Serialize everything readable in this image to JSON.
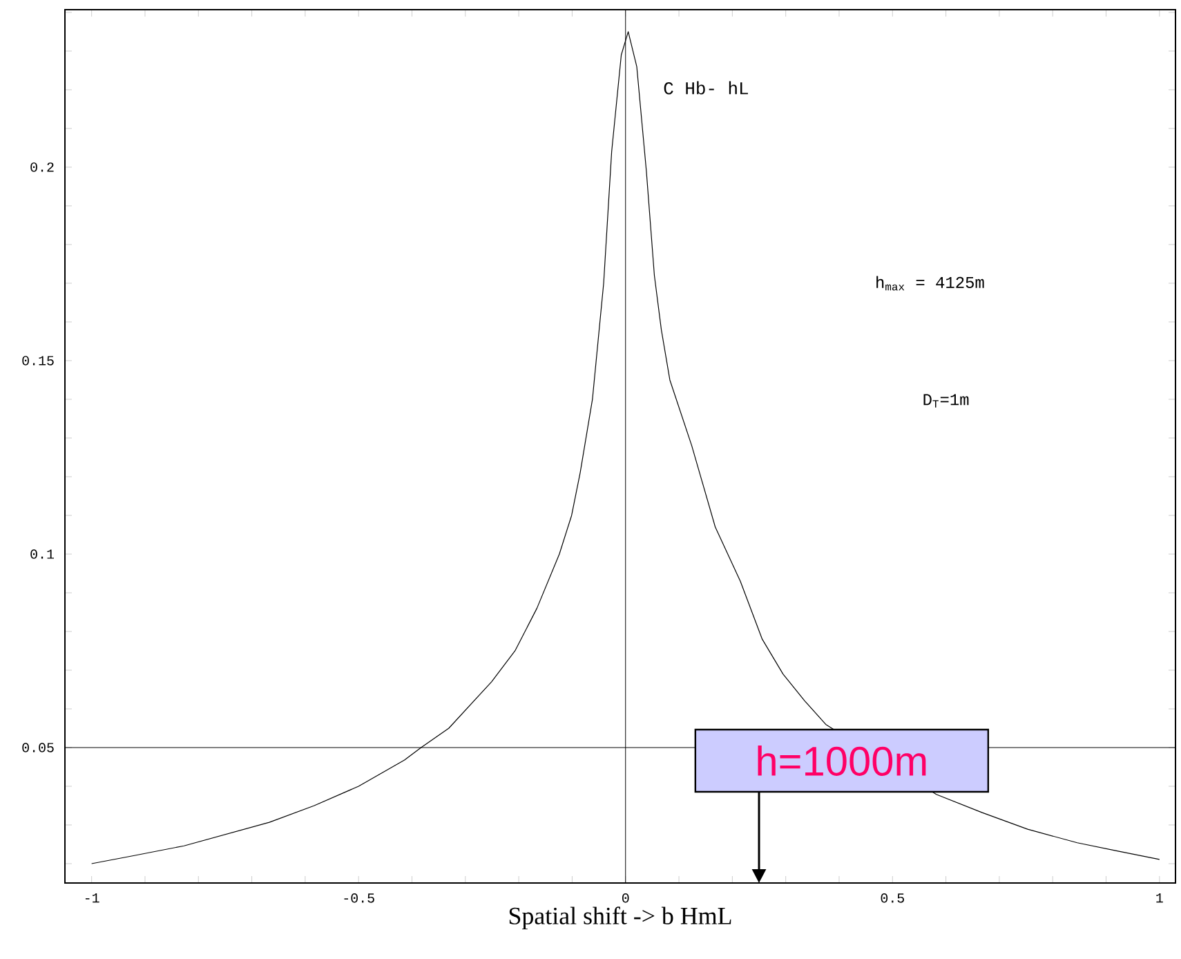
{
  "chart_data": {
    "type": "line",
    "xlabel": "Spatial shift -> b HmL",
    "x": [
      -1,
      -0.92,
      -0.827,
      -0.667,
      -0.583,
      -0.5,
      -0.414,
      -0.383,
      -0.331,
      -0.251,
      -0.207,
      -0.166,
      -0.124,
      -0.101,
      -0.085,
      -0.062,
      -0.041,
      -0.026,
      -0.008,
      0.005,
      0.021,
      0.039,
      0.054,
      0.067,
      0.083,
      0.124,
      0.168,
      0.215,
      0.256,
      0.295,
      0.336,
      0.375,
      0.582,
      0.668,
      0.753,
      0.846,
      0.924,
      1.0
    ],
    "series": [
      {
        "color": "#000000",
        "values": [
          0.02,
          0.0221,
          0.0246,
          0.0307,
          0.035,
          0.04,
          0.0468,
          0.05,
          0.055,
          0.067,
          0.075,
          0.086,
          0.1,
          0.11,
          0.121,
          0.14,
          0.17,
          0.204,
          0.229,
          0.235,
          0.226,
          0.199,
          0.172,
          0.158,
          0.145,
          0.128,
          0.107,
          0.093,
          0.078,
          0.069,
          0.062,
          0.056,
          0.0379,
          0.0332,
          0.0289,
          0.0254,
          0.0232,
          0.0211
        ]
      }
    ],
    "xlim": [
      -1.05,
      1.03
    ],
    "ylim": [
      0.015,
      0.2407
    ],
    "xticks": [
      -1,
      {
        "value": -0.9,
        "label": null
      },
      {
        "value": -0.8,
        "label": null
      },
      {
        "value": -0.7,
        "label": null
      },
      {
        "value": -0.6,
        "label": null
      },
      -0.5,
      {
        "value": -0.4,
        "label": null
      },
      {
        "value": -0.3,
        "label": null
      },
      {
        "value": -0.2,
        "label": null
      },
      {
        "value": -0.1,
        "label": null
      },
      0,
      {
        "value": 0.1,
        "label": null
      },
      {
        "value": 0.2,
        "label": null
      },
      {
        "value": 0.3,
        "label": null
      },
      {
        "value": 0.4,
        "label": null
      },
      0.5,
      {
        "value": 0.6,
        "label": null
      },
      {
        "value": 0.7,
        "label": null
      },
      {
        "value": 0.8,
        "label": null
      },
      {
        "value": 0.9,
        "label": null
      },
      1
    ],
    "yticks": [
      {
        "value": 0.02,
        "label": null
      },
      {
        "value": 0.03,
        "label": null
      },
      {
        "value": 0.04,
        "label": null
      },
      0.05,
      {
        "value": 0.06,
        "label": null
      },
      {
        "value": 0.07,
        "label": null
      },
      {
        "value": 0.08,
        "label": null
      },
      {
        "value": 0.09,
        "label": null
      },
      0.1,
      {
        "value": 0.11,
        "label": null
      },
      {
        "value": 0.12,
        "label": null
      },
      {
        "value": 0.13,
        "label": null
      },
      {
        "value": 0.14,
        "label": null
      },
      0.15,
      {
        "value": 0.16,
        "label": null
      },
      {
        "value": 0.17,
        "label": null
      },
      {
        "value": 0.18,
        "label": null
      },
      {
        "value": 0.19,
        "label": null
      },
      0.2,
      {
        "value": 0.21,
        "label": null
      },
      {
        "value": 0.22,
        "label": null
      },
      {
        "value": 0.23,
        "label": null
      },
      {
        "value": 0.24,
        "label": null
      }
    ],
    "ref_lines": [
      {
        "axis": "y",
        "value": 0.05,
        "color": "#000000"
      },
      {
        "axis": "x",
        "value": 0,
        "color": "#000000"
      }
    ],
    "annotations": [
      "C Hb- hL",
      "h$_{max}$ = 4125m",
      "D$_{T}$=1m",
      "h=1000m"
    ],
    "grid": false,
    "marker": "none",
    "line_style": "solid"
  }
}
